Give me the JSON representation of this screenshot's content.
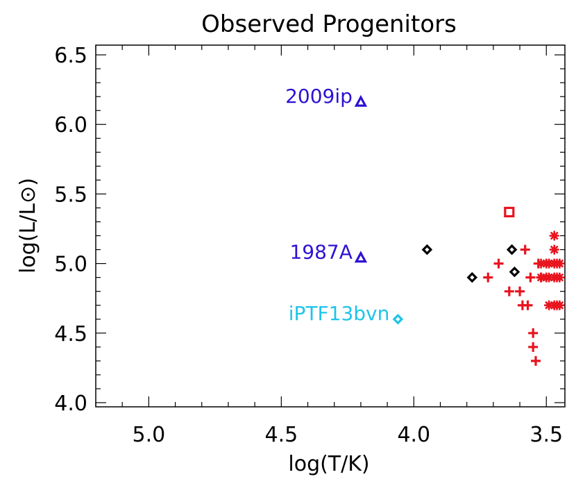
{
  "chart_data": {
    "type": "scatter",
    "title": "Observed Progenitors",
    "xlabel": "log(T/K)",
    "ylabel": "log(L/L⊙)",
    "xlim": [
      5.2,
      3.43
    ],
    "ylim": [
      3.97,
      6.57
    ],
    "x_reversed": true,
    "x_ticks": [
      "5.0",
      "4.5",
      "4.0",
      "3.5"
    ],
    "y_ticks": [
      "4.0",
      "4.5",
      "5.0",
      "5.5",
      "6.0",
      "6.5"
    ],
    "grid": false,
    "series": [
      {
        "marker": "triangle",
        "color": "#2d12d4",
        "points": [
          {
            "x": 4.2,
            "y": 6.16,
            "label": "2009ip"
          },
          {
            "x": 4.2,
            "y": 5.04,
            "label": "1987A"
          }
        ]
      },
      {
        "marker": "diamond",
        "color": "#1ec4ea",
        "points": [
          {
            "x": 4.06,
            "y": 4.6,
            "label": "iPTF13bvn"
          }
        ]
      },
      {
        "marker": "diamond",
        "color": "#000000",
        "points": [
          {
            "x": 3.95,
            "y": 5.1
          },
          {
            "x": 3.78,
            "y": 4.9
          },
          {
            "x": 3.63,
            "y": 5.1
          },
          {
            "x": 3.62,
            "y": 4.94
          }
        ]
      },
      {
        "marker": "square",
        "color": "#e8141e",
        "points": [
          {
            "x": 3.64,
            "y": 5.37
          }
        ]
      },
      {
        "marker": "plus",
        "color": "#e8141e",
        "points": [
          {
            "x": 3.72,
            "y": 4.9
          },
          {
            "x": 3.68,
            "y": 5.0
          },
          {
            "x": 3.64,
            "y": 4.8
          },
          {
            "x": 3.6,
            "y": 4.8
          },
          {
            "x": 3.58,
            "y": 5.1
          },
          {
            "x": 3.59,
            "y": 4.7
          },
          {
            "x": 3.57,
            "y": 4.7
          },
          {
            "x": 3.56,
            "y": 4.9
          },
          {
            "x": 3.55,
            "y": 4.5
          },
          {
            "x": 3.55,
            "y": 4.4
          },
          {
            "x": 3.54,
            "y": 4.3
          },
          {
            "x": 3.53,
            "y": 5.0
          },
          {
            "x": 3.52,
            "y": 4.9
          }
        ]
      },
      {
        "marker": "asterisk",
        "color": "#e8141e",
        "points": [
          {
            "x": 3.47,
            "y": 5.2
          },
          {
            "x": 3.47,
            "y": 5.1
          },
          {
            "x": 3.52,
            "y": 5.0
          },
          {
            "x": 3.5,
            "y": 5.0
          },
          {
            "x": 3.49,
            "y": 5.0
          },
          {
            "x": 3.47,
            "y": 5.0
          },
          {
            "x": 3.46,
            "y": 5.0
          },
          {
            "x": 3.45,
            "y": 5.0
          },
          {
            "x": 3.52,
            "y": 4.9
          },
          {
            "x": 3.5,
            "y": 4.9
          },
          {
            "x": 3.49,
            "y": 4.9
          },
          {
            "x": 3.47,
            "y": 4.9
          },
          {
            "x": 3.46,
            "y": 4.9
          },
          {
            "x": 3.45,
            "y": 4.9
          },
          {
            "x": 3.49,
            "y": 4.7
          },
          {
            "x": 3.47,
            "y": 4.7
          },
          {
            "x": 3.46,
            "y": 4.7
          },
          {
            "x": 3.45,
            "y": 4.7
          }
        ]
      }
    ]
  }
}
